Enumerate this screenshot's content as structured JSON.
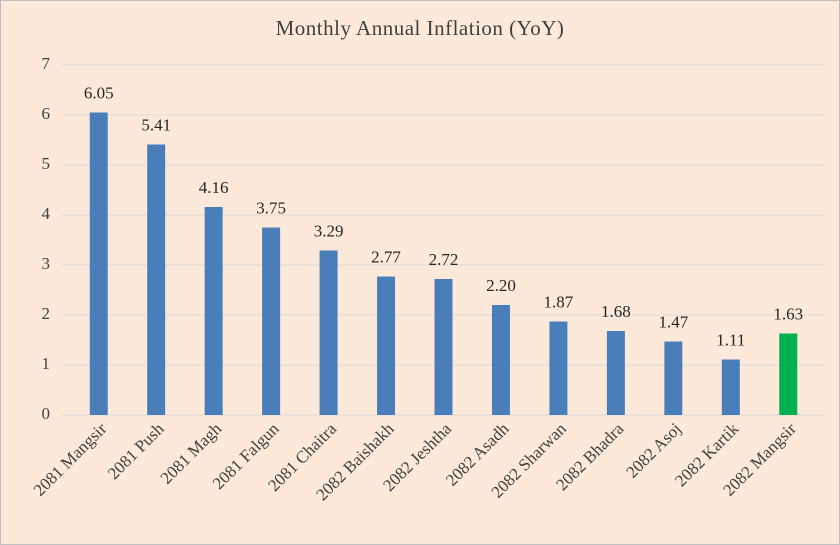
{
  "chart_data": {
    "type": "bar",
    "title": "Monthly  Annual  Inflation  (YoY)",
    "categories": [
      "2081 Mangsir",
      "2081 Push",
      "2081 Magh",
      "2081 Falgun",
      "2081 Chaitra",
      "2082 Baishakh",
      "2082 Jeshtha",
      "2082 Asadh",
      "2082 Sharwan",
      "2082 Bhadra",
      "2082 Asoj",
      "2082 Kartik",
      "2082 Mangsir"
    ],
    "values": [
      6.05,
      5.41,
      4.16,
      3.75,
      3.29,
      2.77,
      2.72,
      2.2,
      1.87,
      1.68,
      1.47,
      1.11,
      1.63
    ],
    "value_labels": [
      "6.05",
      "5.41",
      "4.16",
      "3.75",
      "3.29",
      "2.77",
      "2.72",
      "2.20",
      "1.87",
      "1.68",
      "1.47",
      "1.11",
      "1.63"
    ],
    "colors": [
      "#4a7ebb",
      "#4a7ebb",
      "#4a7ebb",
      "#4a7ebb",
      "#4a7ebb",
      "#4a7ebb",
      "#4a7ebb",
      "#4a7ebb",
      "#4a7ebb",
      "#4a7ebb",
      "#4a7ebb",
      "#4a7ebb",
      "#00b050"
    ],
    "ylim": [
      0,
      7
    ],
    "yticks": [
      0,
      1,
      2,
      3,
      4,
      5,
      6,
      7
    ],
    "grid": true
  }
}
